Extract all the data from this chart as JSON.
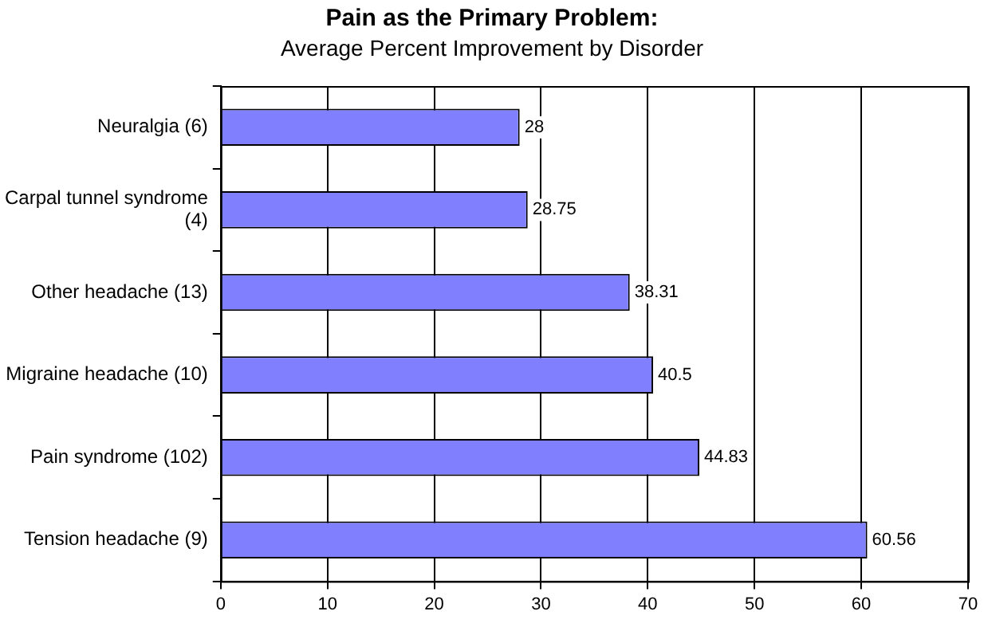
{
  "chart_data": {
    "type": "bar",
    "orientation": "horizontal",
    "title": "Pain as the Primary Problem:",
    "subtitle": "Average Percent Improvement by Disorder",
    "categories": [
      "Neuralgia (6)",
      "Carpal tunnel syndrome (4)",
      "Other headache (13)",
      "Migraine headache (10)",
      "Pain syndrome (102)",
      "Tension headache (9)"
    ],
    "values": [
      28,
      28.75,
      38.31,
      40.5,
      44.83,
      60.56
    ],
    "color": "#8080ff",
    "xlim": [
      0,
      70
    ],
    "xticks": [
      0,
      10,
      20,
      30,
      40,
      50,
      60,
      70
    ],
    "grid": "x",
    "data_labels": true,
    "legend": false
  }
}
